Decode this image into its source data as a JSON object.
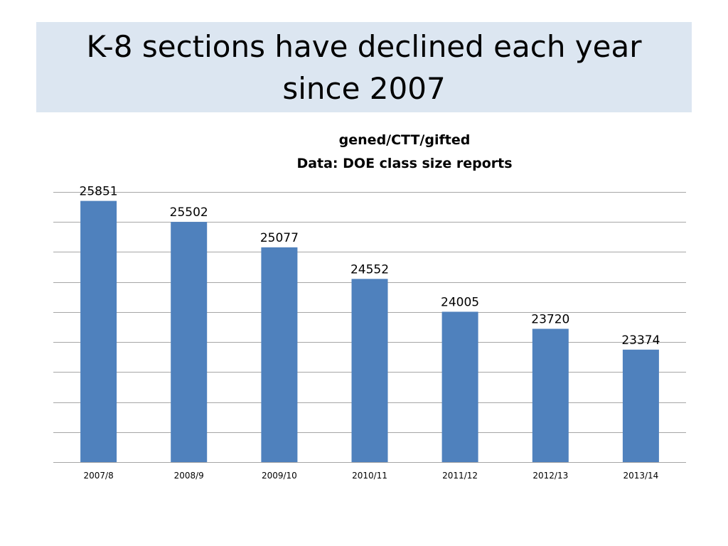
{
  "slide": {
    "title": "K-8 sections have declined each year since 2007"
  },
  "colors": {
    "title_background": "#dce6f1",
    "bar": "#4f81bd",
    "gridline": "#a6a6a6"
  },
  "chart_data": {
    "type": "bar",
    "title_lines": [
      "gened/CTT/gifted",
      "Data: DOE class size reports"
    ],
    "categories": [
      "2007/8",
      "2008/9",
      "2009/10",
      "2010/11",
      "2011/12",
      "2012/13",
      "2013/14"
    ],
    "values": [
      25851,
      25502,
      25077,
      24552,
      24005,
      23720,
      23374
    ],
    "data_labels": [
      "25851",
      "25502",
      "25077",
      "24552",
      "24005",
      "23720",
      "23374"
    ],
    "ylim": [
      21500,
      26000
    ],
    "y_gridline_step": 500,
    "y_tick_labels_shown": false,
    "grid": true,
    "legend": "none"
  }
}
